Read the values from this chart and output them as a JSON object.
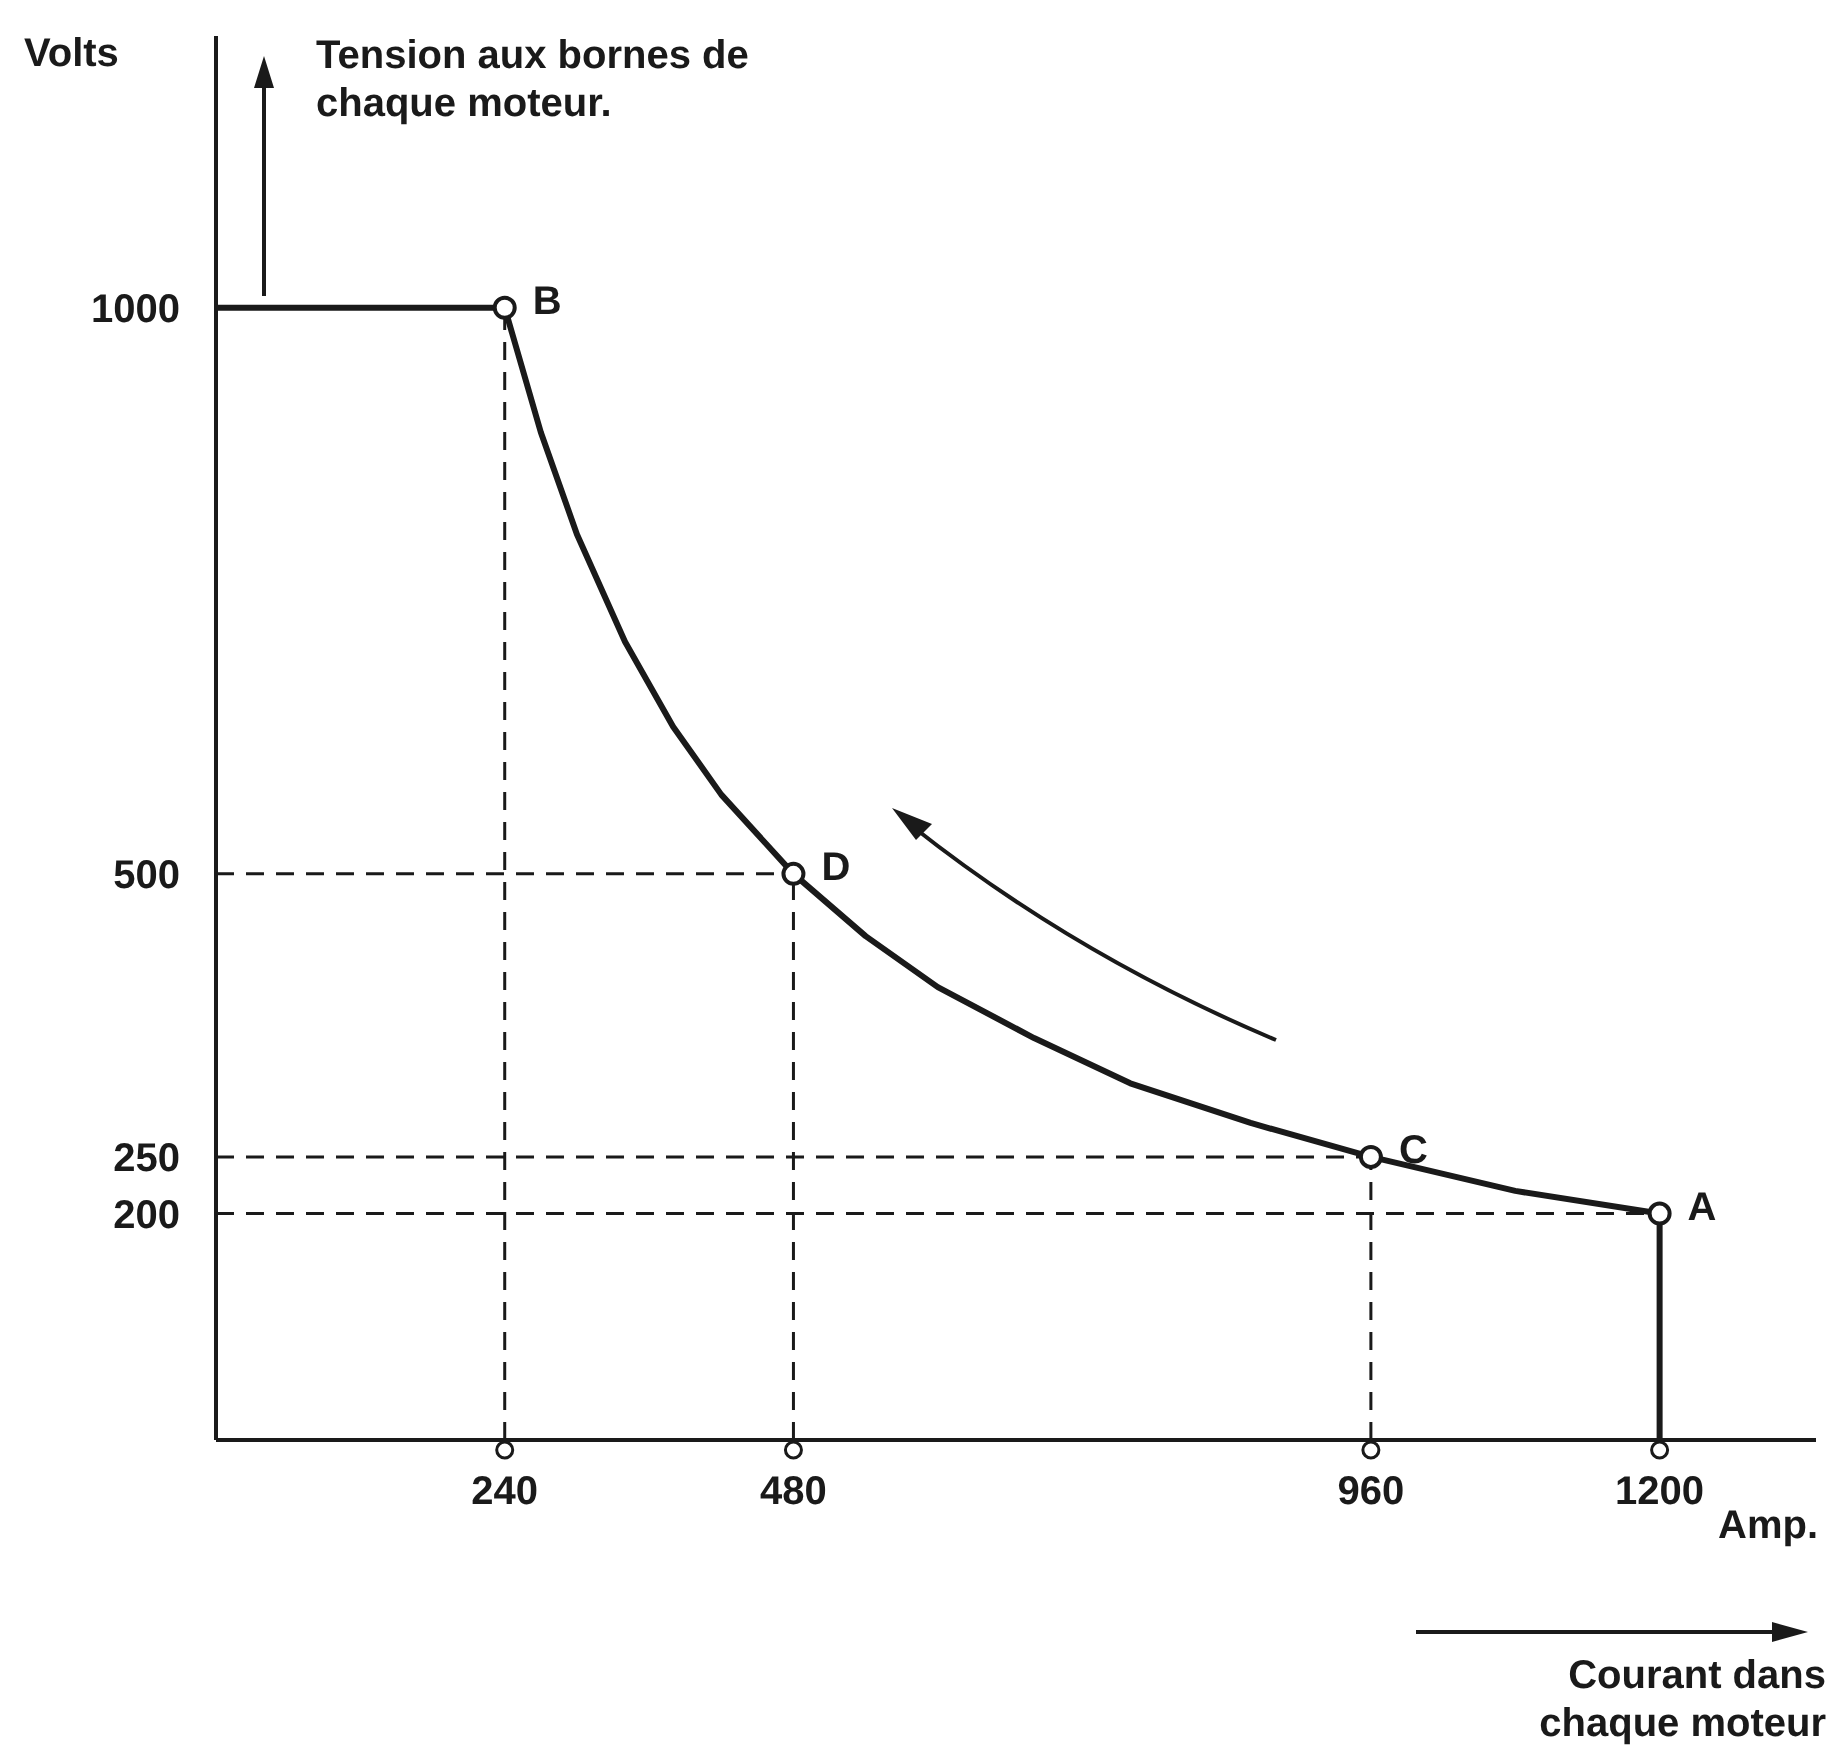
{
  "chart_data": {
    "type": "line",
    "xlabel": "Amp.",
    "ylabel": "Volts",
    "xlim": [
      0,
      1330
    ],
    "ylim": [
      0,
      1240
    ],
    "xticks": [
      240,
      480,
      960,
      1200
    ],
    "yticks": [
      200,
      250,
      500,
      1000
    ],
    "series": [
      {
        "type": "line",
        "color": "#1a1a1a",
        "marker": "none",
        "x": [
          0,
          240,
          270,
          300,
          340,
          380,
          420,
          480,
          540,
          600,
          680,
          760,
          860,
          960,
          1080,
          1200,
          1200
        ],
        "values": [
          1000,
          1000,
          890,
          800,
          705,
          630,
          570,
          500,
          445,
          400,
          355,
          315,
          280,
          250,
          220,
          200,
          0
        ]
      },
      {
        "type": "scatter",
        "color": "#1a1a1a",
        "marker": "circle",
        "x": [
          240,
          480,
          960,
          1200
        ],
        "values": [
          1000,
          500,
          250,
          200
        ]
      }
    ],
    "ref_lines": [
      {
        "axis": "x",
        "value": 240,
        "line_style": "dashed"
      },
      {
        "axis": "x",
        "value": 480,
        "line_style": "dashed"
      },
      {
        "axis": "x",
        "value": 960,
        "line_style": "dashed"
      },
      {
        "axis": "y",
        "value": 500,
        "line_style": "dashed"
      },
      {
        "axis": "y",
        "value": 250,
        "line_style": "dashed"
      },
      {
        "axis": "y",
        "value": 200,
        "line_style": "dashed"
      }
    ],
    "annotations": [
      {
        "text": "B",
        "x": 240,
        "y": 1000
      },
      {
        "text": "D",
        "x": 480,
        "y": 500
      },
      {
        "text": "C",
        "x": 960,
        "y": 250
      },
      {
        "text": "A",
        "x": 1200,
        "y": 200
      },
      "Tension aux bornes de chaque moteur.",
      "Courant dans chaque moteur"
    ]
  }
}
